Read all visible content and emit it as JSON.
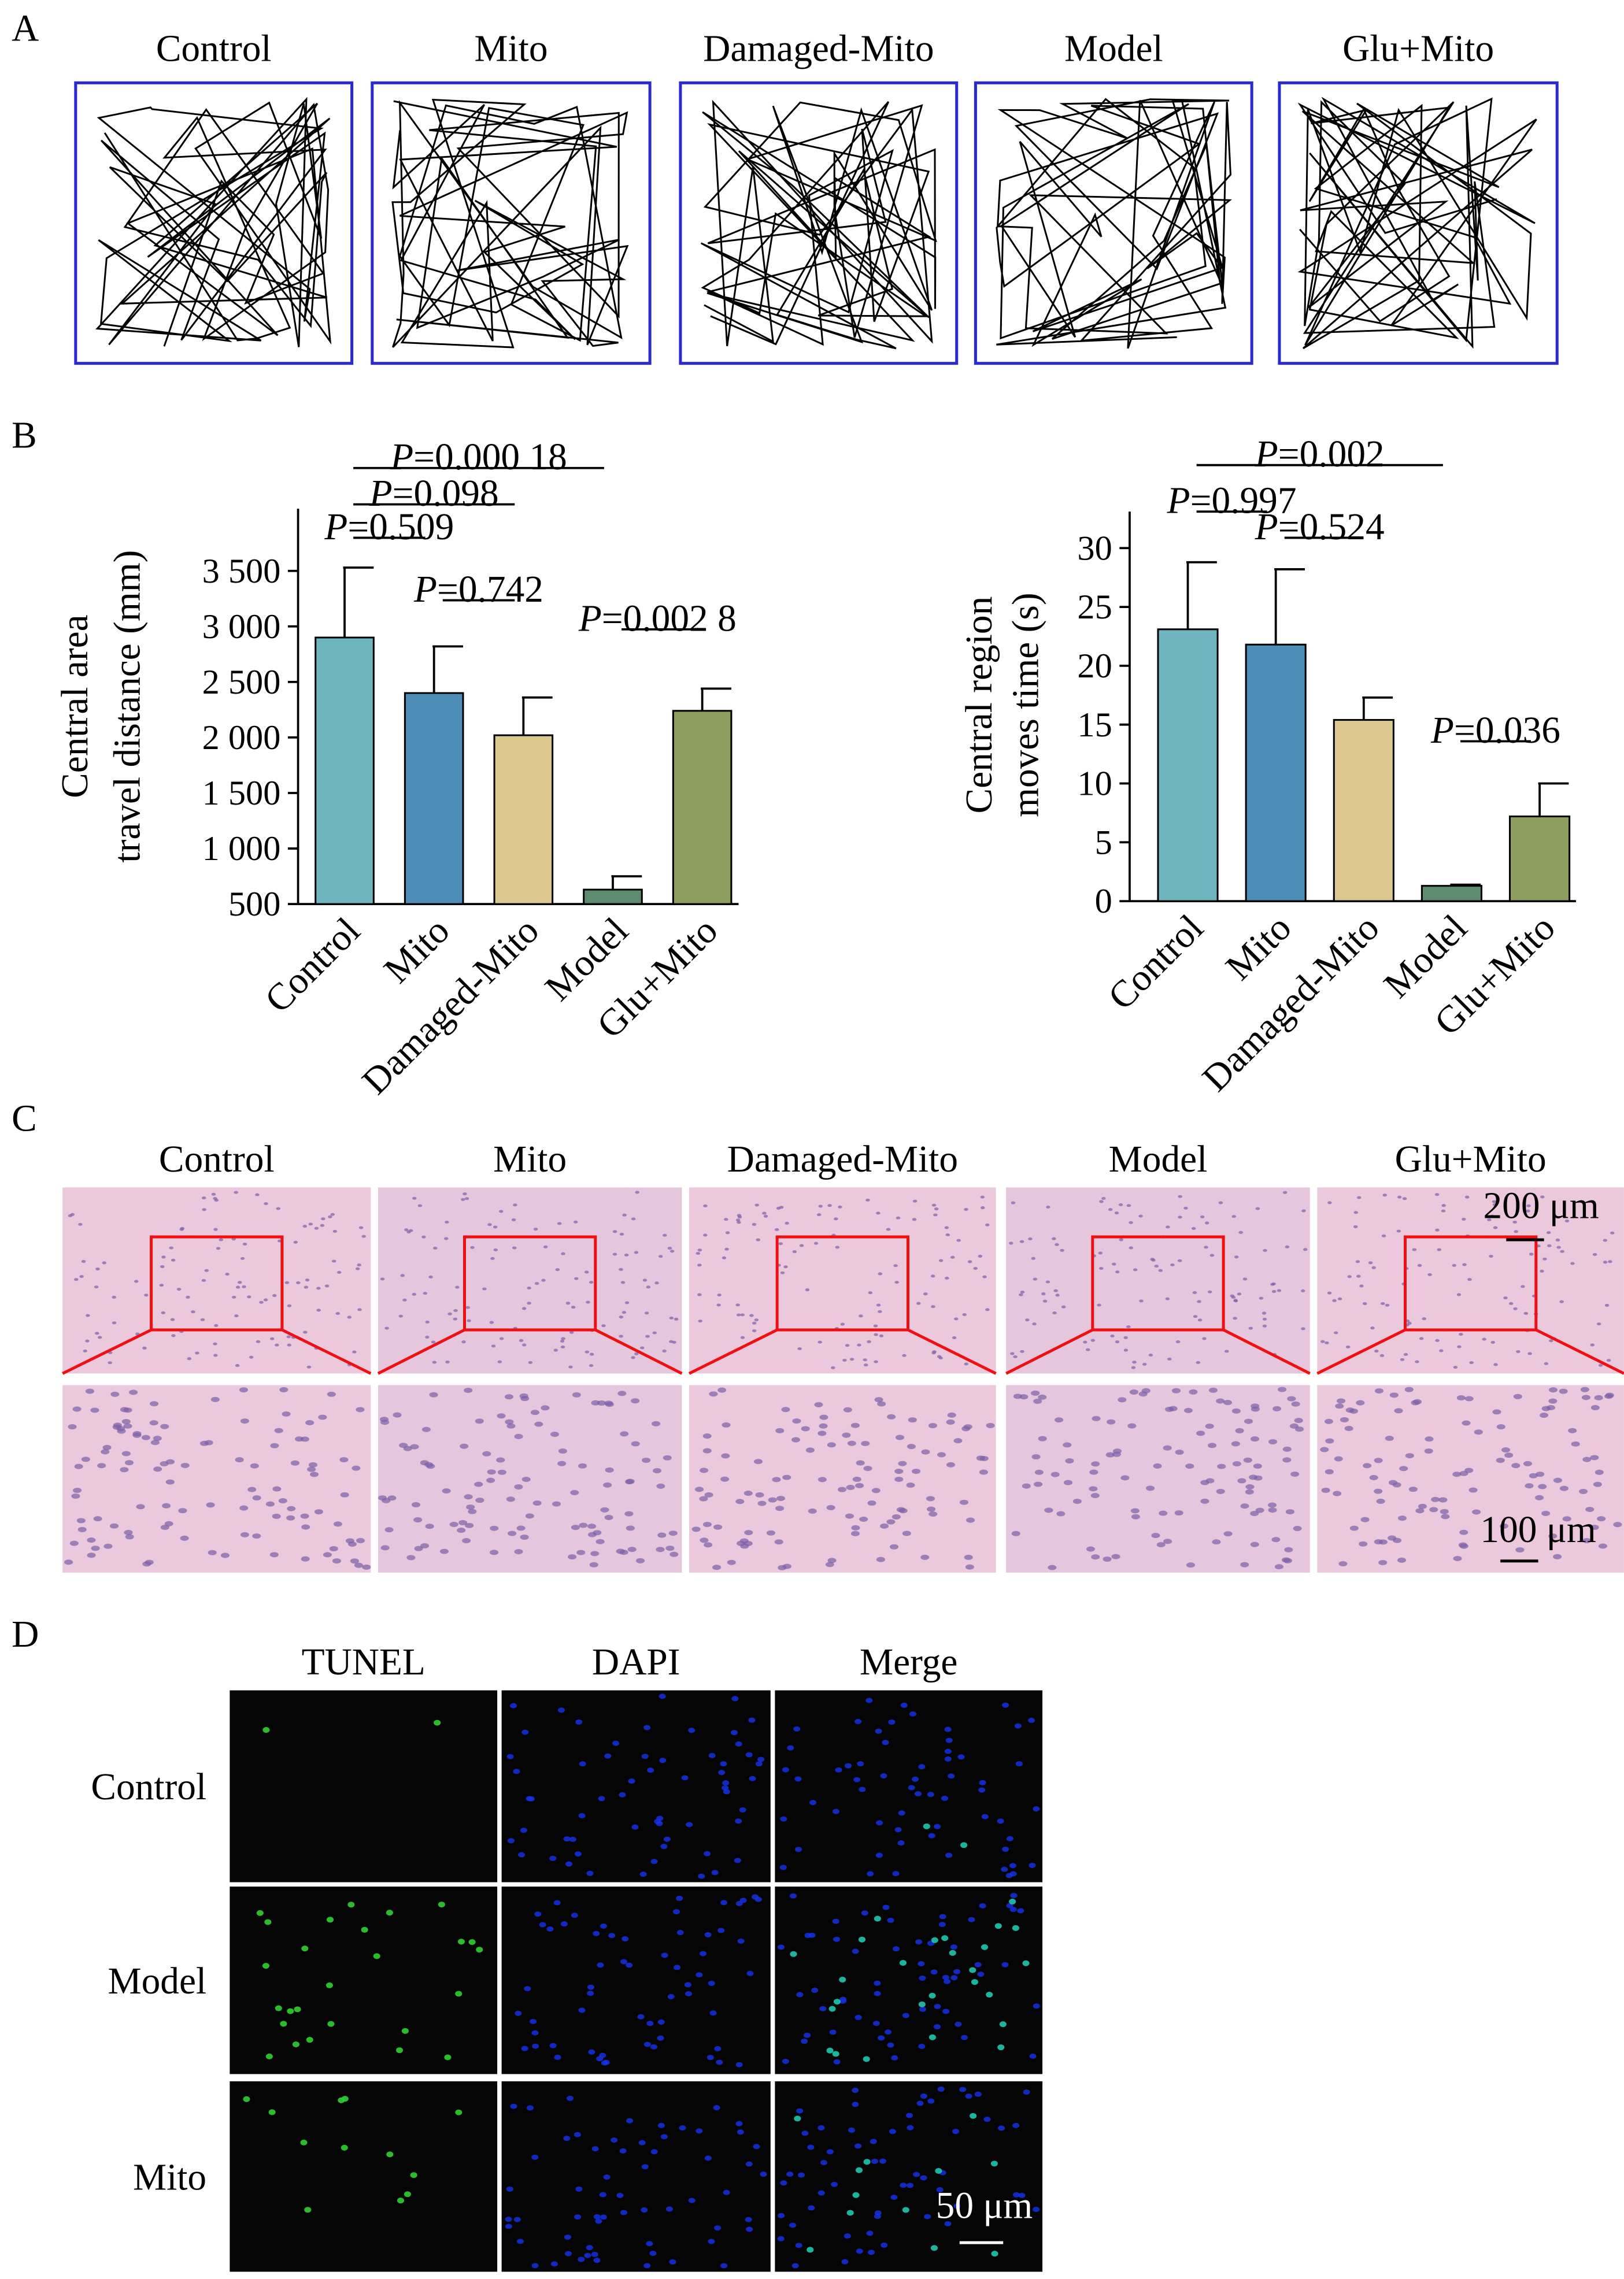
{
  "panel_labels": [
    "A",
    "B",
    "C",
    "D"
  ],
  "panel_a": {
    "groups": [
      "Control",
      "Mito",
      "Damaged-Mito",
      "Model",
      "Glu+Mito"
    ]
  },
  "chart_data": [
    {
      "type": "bar",
      "y_label": [
        "Central area",
        "travel distance (mm)"
      ],
      "categories": [
        "Control",
        "Mito",
        "Damaged-Mito",
        "Model",
        "Glu+Mito"
      ],
      "values": [
        2900,
        2400,
        2020,
        630,
        2240
      ],
      "errors": [
        630,
        420,
        340,
        120,
        200
      ],
      "colors": [
        "#6fb5c0",
        "#4d8db8",
        "#dcc88f",
        "#5e8a6e",
        "#8e9e5e"
      ],
      "ylim": [
        500,
        4060
      ],
      "yticks": [
        500,
        {
          "value": 1000,
          "label": "1 000"
        },
        {
          "value": 1500,
          "label": "1 500"
        },
        {
          "value": 2000,
          "label": "2 000"
        },
        {
          "value": 2500,
          "label": "2 500"
        },
        {
          "value": 3000,
          "label": "3 000"
        },
        {
          "value": 3500,
          "label": "3 500"
        }
      ],
      "comparisons": [
        {
          "label": "P=0.000 18",
          "pair": [
            0,
            3
          ]
        },
        {
          "label": "P=0.098",
          "pair": [
            0,
            2
          ]
        },
        {
          "label": "P=0.509",
          "pair": [
            0,
            1
          ]
        },
        {
          "label": "P=0.742",
          "pair": [
            1,
            2
          ]
        },
        {
          "label": "P=0.002 8",
          "pair": [
            3,
            4
          ]
        }
      ]
    },
    {
      "type": "bar",
      "y_label": [
        "Central region",
        "moves time (s)"
      ],
      "categories": [
        "Control",
        "Mito",
        "Damaged-Mito",
        "Model",
        "Glu+Mito"
      ],
      "values": [
        23.1,
        21.8,
        15.4,
        1.3,
        7.2
      ],
      "errors": [
        5.7,
        6.4,
        1.9,
        0.1,
        2.8
      ],
      "colors": [
        "#6fb5c0",
        "#4d8db8",
        "#dcc88f",
        "#5e8a6e",
        "#8e9e5e"
      ],
      "ylim": [
        0,
        33.1
      ],
      "yticks": [
        0,
        5,
        10,
        15,
        20,
        25,
        30
      ],
      "comparisons": [
        {
          "label": "P=0.002",
          "pair": [
            0,
            3
          ]
        },
        {
          "label": "P=0.997",
          "pair": [
            0,
            1
          ]
        },
        {
          "label": "P=0.524",
          "pair": [
            1,
            2
          ]
        },
        {
          "label": "P=0.036",
          "pair": [
            3,
            4
          ]
        }
      ]
    }
  ],
  "panel_c": {
    "groups": [
      "Control",
      "Mito",
      "Damaged-Mito",
      "Model",
      "Glu+Mito"
    ],
    "scale_bars": [
      "200 μm",
      "100 μm"
    ]
  },
  "panel_d": {
    "columns": [
      "TUNEL",
      "DAPI",
      "Merge"
    ],
    "rows": [
      "Control",
      "Model",
      "Mito"
    ],
    "scale_bar": "50 μm"
  }
}
